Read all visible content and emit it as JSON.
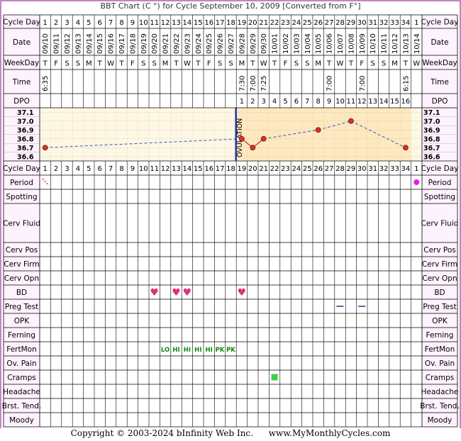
{
  "header": {
    "title": "BBT Chart (C °) for Cycle September 10, 2009  [Converted from F°]"
  },
  "footer": {
    "copyright": "Copyright © 2003-2024 bInfinity Web Inc.",
    "site": "www.MyMonthlyCycles.com"
  },
  "colors": {
    "accent": "#8b0a8b",
    "temp_line": "#3355cc",
    "post_ovulation_line": "#cc3333",
    "point_fill": "#e0302a",
    "ovulation_line": "#2233aa",
    "chart_bg": "#fdf7e4",
    "luteal_bg": "#fde8c0",
    "heart": "#e0307a",
    "fertmon_text": "#118811",
    "cramps": "#44cc44",
    "period_dot": "#dd22dd"
  },
  "chart_data": {
    "type": "line",
    "unit": "C",
    "cycle_days": [
      "1",
      "2",
      "3",
      "4",
      "5",
      "6",
      "7",
      "8",
      "9",
      "10",
      "11",
      "12",
      "13",
      "14",
      "15",
      "16",
      "17",
      "18",
      "19",
      "20",
      "21",
      "22",
      "23",
      "24",
      "25",
      "26",
      "27",
      "28",
      "29",
      "30",
      "31",
      "32",
      "33",
      "34",
      "1"
    ],
    "dates": [
      "09/10",
      "09/11",
      "09/12",
      "09/13",
      "09/14",
      "09/15",
      "09/16",
      "09/17",
      "09/18",
      "09/19",
      "09/20",
      "09/21",
      "09/22",
      "09/23",
      "09/24",
      "09/25",
      "09/26",
      "09/27",
      "09/28",
      "09/29",
      "09/30",
      "10/01",
      "10/02",
      "10/03",
      "10/04",
      "10/05",
      "10/06",
      "10/07",
      "10/08",
      "10/09",
      "10/10",
      "10/11",
      "10/12",
      "10/13",
      "10/14"
    ],
    "weekdays": [
      "T",
      "F",
      "S",
      "S",
      "M",
      "T",
      "W",
      "T",
      "F",
      "S",
      "S",
      "M",
      "T",
      "W",
      "T",
      "F",
      "S",
      "S",
      "M",
      "T",
      "W",
      "T",
      "F",
      "S",
      "S",
      "M",
      "T",
      "W",
      "T",
      "F",
      "S",
      "S",
      "M",
      "T",
      "W"
    ],
    "times": [
      "6:35",
      "",
      "",
      "",
      "",
      "",
      "",
      "",
      "",
      "",
      "",
      "",
      "",
      "",
      "",
      "",
      "",
      "",
      "7:30",
      "7:00",
      "7:25",
      "",
      "",
      "",
      "",
      "",
      "7:00",
      "",
      "",
      "7:00",
      "",
      "",
      "",
      "6:15",
      ""
    ],
    "dpo": [
      "",
      "",
      "",
      "",
      "",
      "",
      "",
      "",
      "",
      "",
      "",
      "",
      "",
      "",
      "",
      "",
      "",
      "",
      "1",
      "2",
      "3",
      "4",
      "5",
      "6",
      "7",
      "8",
      "9",
      "10",
      "11",
      "12",
      "13",
      "14",
      "15",
      "16",
      ""
    ],
    "temperatures": [
      {
        "day": 1,
        "temp": 36.7
      },
      {
        "day": 19,
        "temp": 36.8
      },
      {
        "day": 20,
        "temp": 36.7
      },
      {
        "day": 21,
        "temp": 36.8
      },
      {
        "day": 26,
        "temp": 36.9
      },
      {
        "day": 29,
        "temp": 37.0
      },
      {
        "day": 34,
        "temp": 36.7
      }
    ],
    "y_ticks": [
      "37.1",
      "37.0",
      "36.9",
      "36.8",
      "36.7",
      "36.6"
    ],
    "ylim": [
      36.55,
      37.15
    ],
    "ovulation_after_day": 18,
    "ovulation_label": "OVULATION",
    "rows": {
      "cycle_day": "Cycle Day",
      "date": "Date",
      "weekday": "WeekDay",
      "time": "Time",
      "dpo": "DPO",
      "period": "Period",
      "spotting": "Spotting",
      "cerv_fluid": "Cerv Fluid",
      "cerv_pos": "Cerv Pos",
      "cerv_firm": "Cerv Firm",
      "cerv_opn": "Cerv Opn",
      "bd": "BD",
      "preg_test": "Preg Test",
      "opk": "OPK",
      "ferning": "Ferning",
      "fertmon": "FertMon",
      "ov_pain": "Ov. Pain",
      "cramps": "Cramps",
      "headache": "Headache",
      "brst_tend": "Brst. Tend.",
      "moody": "Moody"
    },
    "period": [
      {
        "col": 1,
        "kind": "spotting-dots"
      },
      {
        "col": 35,
        "kind": "dot"
      }
    ],
    "bd_days": [
      11,
      13,
      14,
      19
    ],
    "preg_test_days": [
      28,
      30
    ],
    "fertmon": [
      {
        "day": 12,
        "value": "LO"
      },
      {
        "day": 13,
        "value": "HI"
      },
      {
        "day": 14,
        "value": "HI"
      },
      {
        "day": 15,
        "value": "HI"
      },
      {
        "day": 16,
        "value": "HI"
      },
      {
        "day": 17,
        "value": "PK"
      },
      {
        "day": 18,
        "value": "PK"
      }
    ],
    "cramps_days": [
      22
    ]
  }
}
